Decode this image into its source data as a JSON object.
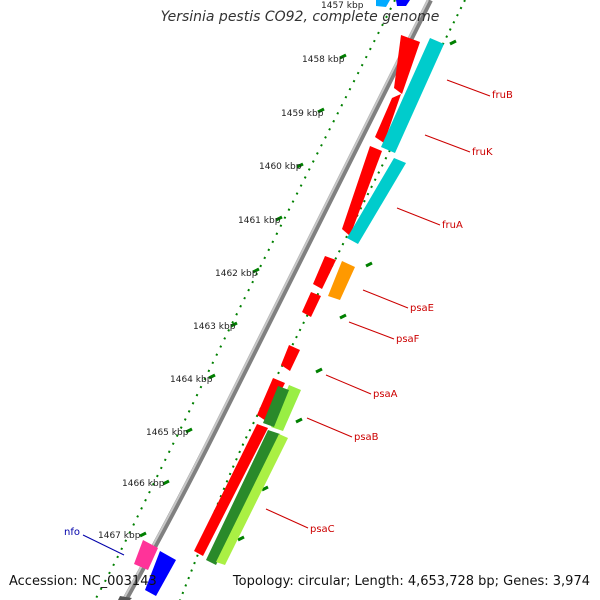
{
  "title": "Yersinia pestis CO92, complete genome",
  "footer": {
    "accession": "Accession: NC_003143",
    "summary": "Topology: circular; Length: 4,653,728 bp; Genes: 3,974"
  },
  "colors": {
    "backbone": "#909090",
    "ticks": "#008000",
    "gene_label": "#cc0000",
    "other_label": "#0000aa",
    "red_gene": "#ff0000",
    "cyan_gene": "#00d4d4",
    "orange_gene": "#ff9900",
    "green_gene": "#2a8a2a",
    "lime_gene": "#a8f040",
    "pink_gene": "#ff3399",
    "blue_gene": "#0000ff"
  },
  "position_labels": [
    "1457 kbp",
    "1458 kbp",
    "1459 kbp",
    "1460 kbp",
    "1461 kbp",
    "1462 kbp",
    "1463 kbp",
    "1464 kbp",
    "1465 kbp",
    "1466 kbp",
    "1467 kbp"
  ],
  "genes": [
    {
      "label": "fruB",
      "feature": "cyan-feature"
    },
    {
      "label": "fruK",
      "feature": "cyan-feature"
    },
    {
      "label": "fruA",
      "feature": "cyan-feature"
    },
    {
      "label": "psaE",
      "feature": "orange-feature"
    },
    {
      "label": "psaF",
      "feature": "red-feature"
    },
    {
      "label": "psaA",
      "feature": "red-feature"
    },
    {
      "label": "psaB",
      "feature": "green-feature"
    },
    {
      "label": "psaC",
      "feature": "lime-feature"
    },
    {
      "label": "nfo",
      "feature": "pink-feature"
    }
  ]
}
